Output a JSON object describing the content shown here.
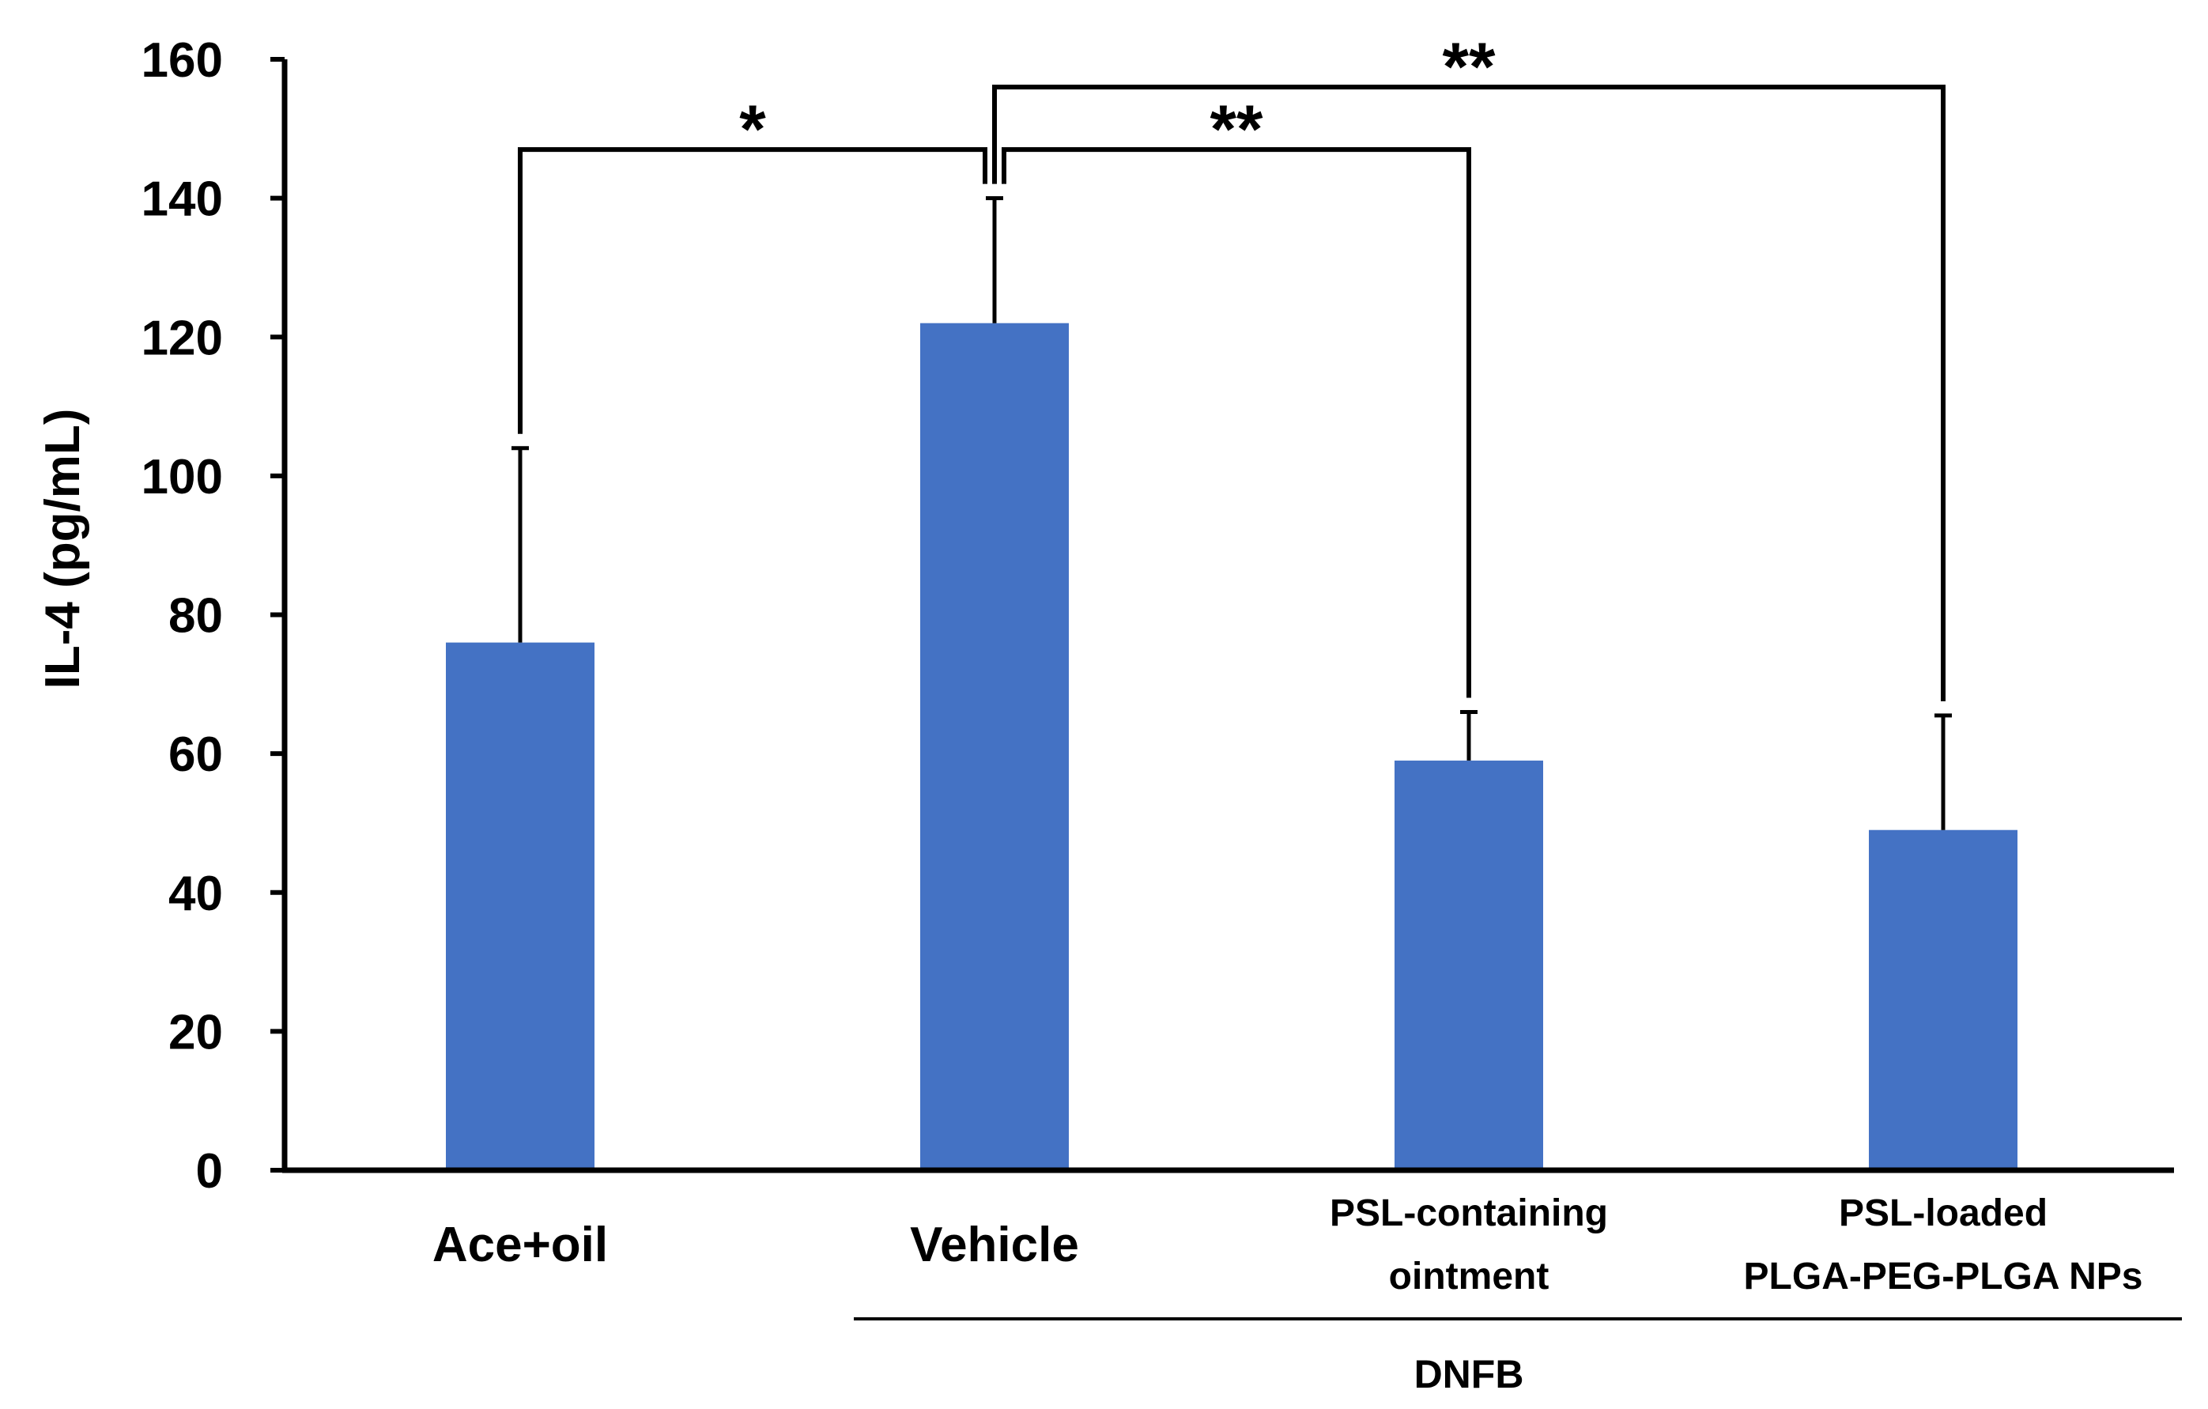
{
  "chart_data": {
    "type": "bar",
    "title": "",
    "xlabel": "",
    "ylabel": "IL-4 (pg/mL)",
    "ylim": [
      0,
      160
    ],
    "yticks": [
      0,
      20,
      40,
      60,
      80,
      100,
      120,
      140,
      160
    ],
    "grid": false,
    "bar_color": "#4472C4",
    "categories": [
      {
        "lines": [
          "Ace+oil"
        ]
      },
      {
        "lines": [
          "Vehicle"
        ]
      },
      {
        "lines": [
          "PSL-containing",
          "ointment"
        ]
      },
      {
        "lines": [
          "PSL-loaded",
          "PLGA-PEG-PLGA NPs"
        ]
      }
    ],
    "values": [
      76,
      122,
      59,
      49
    ],
    "errors": [
      28,
      18,
      7,
      16.5
    ],
    "group": {
      "label": "DNFB",
      "from_index": 1,
      "to_index": 3
    },
    "significance": [
      {
        "from_index": 0,
        "to_index": 1,
        "label": "*",
        "level": 147
      },
      {
        "from_index": 1,
        "to_index": 2,
        "label": "**",
        "level": 147
      },
      {
        "from_index": 1,
        "to_index": 3,
        "label": "**",
        "level": 156
      }
    ]
  }
}
